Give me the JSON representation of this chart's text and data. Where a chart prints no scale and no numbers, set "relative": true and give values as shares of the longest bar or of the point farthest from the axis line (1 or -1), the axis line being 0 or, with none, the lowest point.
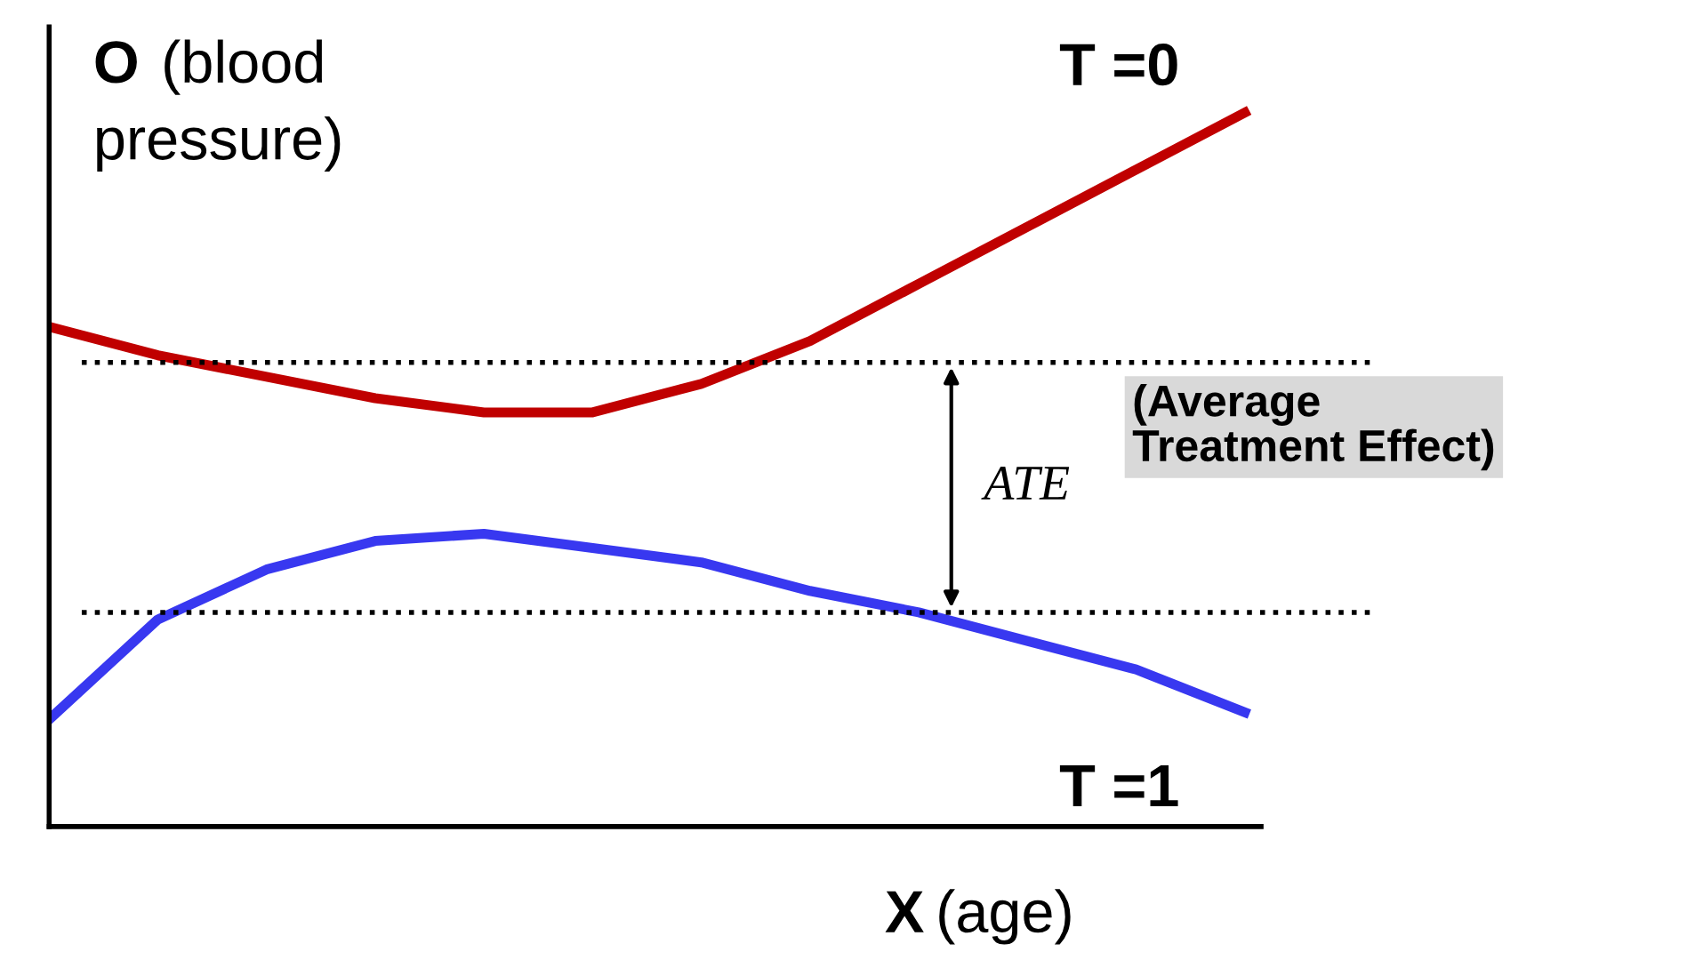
{
  "chart_data": {
    "type": "line",
    "relative": true,
    "xlabel": "X (age)",
    "ylabel": "O (blood pressure)",
    "categories": [
      null,
      null,
      null,
      null,
      null,
      null,
      null,
      null,
      null,
      null,
      null,
      null
    ],
    "series": [
      {
        "name": "T =0",
        "color": "#c00000",
        "values": [
          0.7,
          0.66,
          0.63,
          0.6,
          0.58,
          0.58,
          0.62,
          0.68,
          0.76,
          0.84,
          0.92,
          1.0
        ]
      },
      {
        "name": "T =1",
        "color": "#3838f0",
        "values": [
          0.15,
          0.29,
          0.36,
          0.4,
          0.41,
          0.39,
          0.37,
          0.33,
          0.3,
          0.26,
          0.22,
          0.16
        ]
      }
    ],
    "ref_lines": [
      {
        "axis": "y",
        "value": 0.65,
        "color": "#000000",
        "line_style": "dotted"
      },
      {
        "axis": "y",
        "value": 0.3,
        "color": "#000000",
        "line_style": "dotted"
      }
    ],
    "annotations": [
      "ATE",
      "(Average Treatment Effect)"
    ],
    "legend": false,
    "marker": "none",
    "line_style": "solid"
  }
}
